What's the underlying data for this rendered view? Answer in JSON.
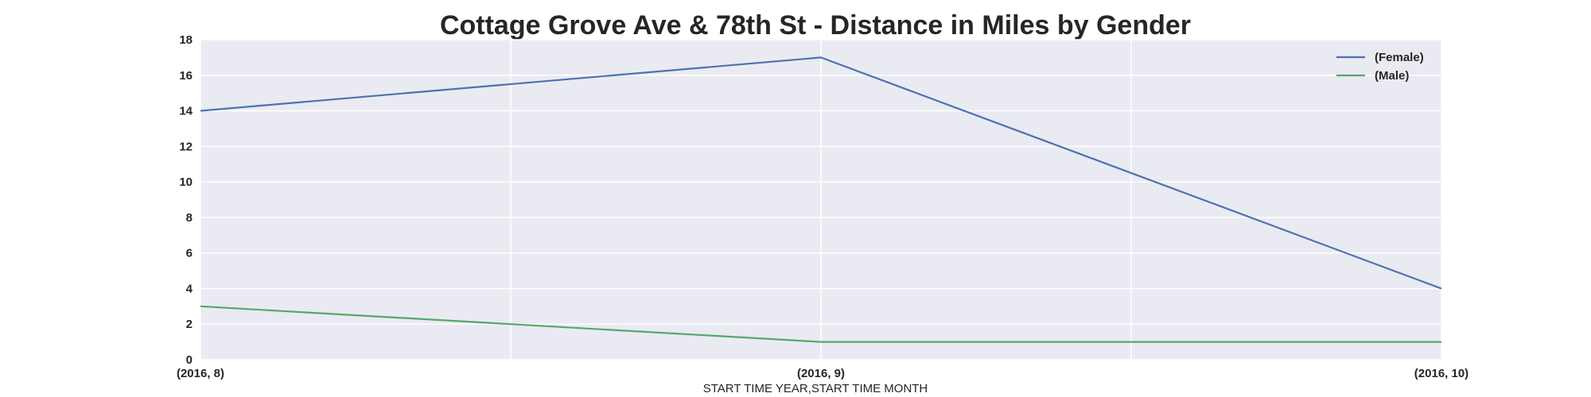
{
  "chart_data": {
    "type": "line",
    "title": "Cottage Grove Ave & 78th St - Distance in Miles by Gender",
    "xlabel": "START TIME YEAR,START TIME MONTH",
    "ylabel": "",
    "categories": [
      "(2016, 8)",
      "(2016, 9)",
      "(2016, 10)"
    ],
    "ylim": [
      0,
      18
    ],
    "yticks": [
      "0",
      "2",
      "4",
      "6",
      "8",
      "10",
      "12",
      "14",
      "16",
      "18"
    ],
    "grid": true,
    "legend_position": "top-right",
    "series": [
      {
        "name": "(Female)",
        "values": [
          14,
          17,
          4
        ],
        "color": "#4c72b0"
      },
      {
        "name": "(Male)",
        "values": [
          3,
          1,
          1
        ],
        "color": "#55a868"
      }
    ],
    "colors": {
      "plot_background": "#eaeaf2",
      "grid": "#ffffff",
      "text": "#262626"
    }
  }
}
